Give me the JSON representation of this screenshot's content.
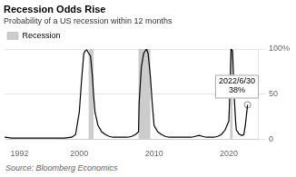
{
  "chart_data": {
    "type": "line",
    "title": "Recession Odds Rise",
    "subtitle": "Probability of a US recession within 12 months",
    "source": "Source: Bloomberg Economics",
    "x": [
      1990,
      1991,
      1992,
      1993,
      1994,
      1995,
      1996,
      1997,
      1998,
      1999,
      1999.5,
      2000.0,
      2000.3,
      2000.6,
      2000.8,
      2001.0,
      2001.2,
      2001.5,
      2001.75,
      2001.9,
      2002.1,
      2002.5,
      2003.0,
      2003.5,
      2004.0,
      2004.5,
      2005.0,
      2005.5,
      2006.0,
      2006.5,
      2007.0,
      2007.5,
      2007.92,
      2008.0,
      2008.3,
      2008.6,
      2008.9,
      2009.0,
      2009.2,
      2009.5,
      2009.75,
      2010.0,
      2010.5,
      2011.0,
      2011.5,
      2012.0,
      2012.5,
      2013.0,
      2013.5,
      2014.0,
      2014.5,
      2015.0,
      2015.5,
      2016.0,
      2016.5,
      2017.0,
      2017.5,
      2018.0,
      2018.5,
      2019.0,
      2019.5,
      2019.75,
      2019.9,
      2020.0,
      2020.17,
      2020.3,
      2020.5,
      2020.7,
      2020.9,
      2021.0,
      2021.2,
      2021.3,
      2021.5,
      2021.75,
      2022.0,
      2022.2,
      2022.4,
      2022.5
    ],
    "values": [
      2,
      1,
      1,
      1,
      1,
      1,
      1,
      1,
      1,
      2,
      5,
      30,
      65,
      95,
      98,
      99,
      96,
      92,
      70,
      50,
      30,
      15,
      8,
      5,
      3,
      2,
      2,
      2,
      2,
      2,
      3,
      5,
      8,
      40,
      80,
      95,
      99,
      100,
      95,
      70,
      40,
      15,
      8,
      5,
      3,
      2,
      2,
      2,
      2,
      2,
      2,
      2,
      3,
      4,
      3,
      2,
      2,
      2,
      3,
      5,
      10,
      15,
      18,
      20,
      60,
      100,
      98,
      50,
      20,
      10,
      8,
      6,
      5,
      4,
      5,
      15,
      30,
      38
    ],
    "color": "#000000",
    "shaded_ranges": {
      "name": "Recession",
      "color": "#cccccc",
      "ranges": [
        [
          2001.25,
          2001.92
        ],
        [
          2007.92,
          2009.5
        ],
        [
          2020.17,
          2020.5
        ]
      ]
    },
    "annotation": {
      "x": 2022.5,
      "y": 38,
      "text": "2022/6/30\n38%"
    },
    "xlim": [
      1990,
      2024
    ],
    "xticks": [
      1992,
      2000,
      2010,
      2020
    ],
    "ylim": [
      0,
      100
    ],
    "yticks": [
      0,
      50,
      {
        "value": 100,
        "label": "100%"
      }
    ],
    "grid": "y",
    "legend": "upper left"
  }
}
